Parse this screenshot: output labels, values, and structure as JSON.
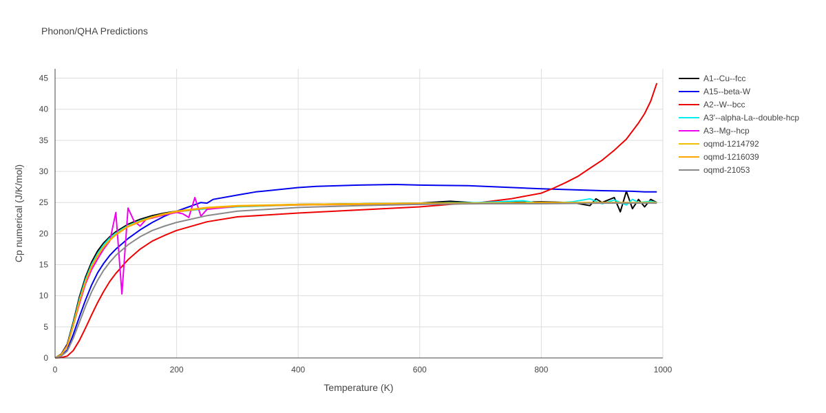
{
  "chart_data": {
    "type": "line",
    "title": "Phonon/QHA Predictions",
    "xlabel": "Temperature (K)",
    "ylabel": "Cp numerical (J/K/mol)",
    "xlim": [
      0,
      1000
    ],
    "ylim": [
      0,
      46.5
    ],
    "xticks": [
      0,
      200,
      400,
      600,
      800,
      1000
    ],
    "yticks": [
      0,
      5,
      10,
      15,
      20,
      25,
      30,
      35,
      40,
      45
    ],
    "grid": true,
    "legend_position": "right",
    "series": [
      {
        "name": "A1--Cu--fcc",
        "color": "#000000",
        "x": [
          0,
          10,
          20,
          30,
          40,
          50,
          60,
          70,
          80,
          90,
          100,
          120,
          140,
          160,
          180,
          200,
          250,
          300,
          400,
          500,
          600,
          650,
          700,
          750,
          800,
          850,
          880,
          890,
          900,
          920,
          930,
          940,
          950,
          960,
          970,
          980,
          990
        ],
        "y": [
          0,
          0.6,
          2.2,
          5.8,
          9.8,
          13.0,
          15.4,
          17.2,
          18.5,
          19.5,
          20.3,
          21.5,
          22.3,
          22.9,
          23.3,
          23.6,
          24.1,
          24.4,
          24.7,
          24.8,
          24.9,
          25.2,
          24.9,
          25.0,
          25.1,
          25.0,
          24.5,
          25.6,
          25.0,
          25.8,
          23.5,
          26.8,
          24.0,
          25.5,
          24.3,
          25.5,
          25.0
        ]
      },
      {
        "name": "A15--beta-W",
        "color": "#0000ee",
        "x": [
          0,
          10,
          20,
          30,
          40,
          50,
          60,
          70,
          80,
          90,
          100,
          120,
          140,
          160,
          180,
          200,
          220,
          240,
          250,
          260,
          300,
          330,
          400,
          430,
          500,
          560,
          600,
          680,
          800,
          900,
          950,
          970,
          990
        ],
        "y": [
          0,
          0.3,
          1.3,
          3.8,
          6.6,
          9.3,
          11.7,
          13.7,
          15.2,
          16.5,
          17.5,
          19.2,
          20.6,
          21.8,
          22.8,
          23.6,
          24.3,
          25.0,
          24.9,
          25.5,
          26.2,
          26.7,
          27.4,
          27.6,
          27.8,
          27.9,
          27.8,
          27.7,
          27.2,
          26.9,
          26.8,
          26.7,
          26.7
        ]
      },
      {
        "name": "A2--W--bcc",
        "color": "#ee0000",
        "x": [
          0,
          10,
          20,
          30,
          40,
          50,
          60,
          70,
          80,
          90,
          100,
          120,
          140,
          160,
          180,
          200,
          250,
          300,
          400,
          500,
          600,
          650,
          700,
          750,
          800,
          820,
          840,
          860,
          880,
          900,
          920,
          940,
          960,
          970,
          980,
          990
        ],
        "y": [
          0,
          0.05,
          0.3,
          1.2,
          2.8,
          4.8,
          6.9,
          8.9,
          10.7,
          12.3,
          13.6,
          15.8,
          17.5,
          18.8,
          19.7,
          20.5,
          21.9,
          22.7,
          23.3,
          23.8,
          24.3,
          24.7,
          25.0,
          25.6,
          26.5,
          27.3,
          28.2,
          29.2,
          30.5,
          31.8,
          33.4,
          35.2,
          37.8,
          39.3,
          41.3,
          44.2
        ]
      },
      {
        "name": "A3'--alpha-La--double-hcp",
        "color": "#00eeee",
        "x": [
          0,
          10,
          20,
          30,
          40,
          50,
          60,
          70,
          80,
          90,
          100,
          120,
          140,
          160,
          180,
          200,
          250,
          300,
          400,
          500,
          600,
          700,
          770,
          800,
          850,
          880,
          900,
          920,
          940,
          950,
          960,
          980,
          990
        ],
        "y": [
          0,
          0.5,
          2.0,
          5.5,
          9.4,
          12.6,
          15.0,
          16.8,
          18.2,
          19.3,
          20.1,
          21.3,
          22.1,
          22.7,
          23.2,
          23.5,
          24.0,
          24.3,
          24.6,
          24.8,
          24.9,
          25.0,
          25.3,
          24.8,
          25.1,
          25.6,
          24.8,
          25.4,
          24.6,
          25.5,
          25.0,
          25.2,
          25.0
        ]
      },
      {
        "name": "A3--Mg--hcp",
        "color": "#ee00ee",
        "x": [
          0,
          10,
          20,
          30,
          40,
          50,
          60,
          70,
          80,
          90,
          100,
          110,
          120,
          130,
          140,
          150,
          160,
          180,
          200,
          210,
          220,
          230,
          240,
          250,
          300,
          400,
          500,
          600
        ],
        "y": [
          0,
          0.5,
          2.0,
          5.2,
          8.7,
          11.9,
          14.2,
          15.9,
          17.5,
          18.8,
          23.4,
          10.3,
          24.1,
          22.0,
          21.2,
          22.3,
          22.5,
          23.0,
          23.4,
          23.2,
          22.6,
          25.8,
          22.8,
          23.9,
          24.4,
          24.6,
          24.7,
          24.9
        ]
      },
      {
        "name": "oqmd-1214792",
        "color": "#f0c000",
        "x": [
          0,
          10,
          20,
          30,
          40,
          50,
          60,
          70,
          80,
          90,
          100,
          120,
          140,
          160,
          180,
          200,
          250,
          300,
          400,
          500,
          600,
          700,
          800,
          900,
          990
        ],
        "y": [
          0,
          0.5,
          1.9,
          5.3,
          9.1,
          12.3,
          14.7,
          16.5,
          17.9,
          19.0,
          19.9,
          21.2,
          22.0,
          22.7,
          23.2,
          23.6,
          24.2,
          24.5,
          24.7,
          24.8,
          24.9,
          24.9,
          25.0,
          25.0,
          25.0
        ]
      },
      {
        "name": "oqmd-1216039",
        "color": "#ffa500",
        "x": [
          0,
          10,
          20,
          30,
          40,
          50,
          60,
          70,
          80,
          90,
          100,
          120,
          140,
          160,
          180,
          200,
          250,
          300,
          400,
          500,
          600,
          700,
          800,
          900,
          990
        ],
        "y": [
          0,
          0.5,
          1.9,
          5.2,
          9.0,
          12.2,
          14.6,
          16.4,
          17.8,
          18.9,
          19.8,
          21.1,
          21.9,
          22.6,
          23.1,
          23.5,
          24.1,
          24.4,
          24.6,
          24.7,
          24.8,
          24.9,
          24.9,
          25.0,
          24.9
        ]
      },
      {
        "name": "oqmd-21053",
        "color": "#888888",
        "x": [
          0,
          10,
          20,
          30,
          40,
          50,
          60,
          70,
          80,
          90,
          100,
          120,
          140,
          160,
          180,
          200,
          250,
          300,
          400,
          500,
          600,
          700,
          800,
          900,
          990
        ],
        "y": [
          0,
          0.3,
          1.1,
          3.2,
          5.7,
          8.3,
          10.6,
          12.5,
          14.1,
          15.4,
          16.5,
          18.2,
          19.5,
          20.5,
          21.2,
          21.8,
          22.9,
          23.6,
          24.2,
          24.5,
          24.7,
          24.8,
          24.8,
          24.9,
          24.9
        ]
      }
    ]
  }
}
